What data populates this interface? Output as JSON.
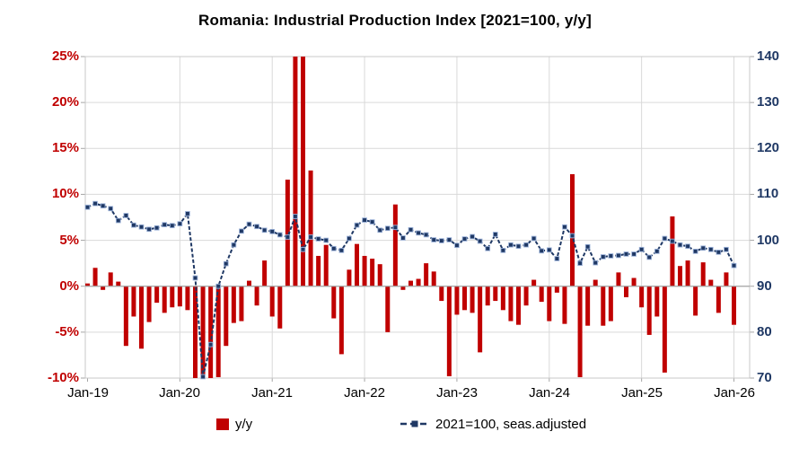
{
  "title": "Romania: Industrial Production Index [2021=100, y/y]",
  "colors": {
    "bar": "#c00000",
    "line": "#1f3864",
    "left_axis_labels": "#c00000",
    "right_axis_labels": "#1f3864",
    "x_axis_labels": "#000000",
    "gridline": "#d9d9d9",
    "plot_border": "#c9c9c9",
    "zero_line": "#a6a6a6",
    "marker_halo": "#9db3d9",
    "background": "#ffffff"
  },
  "axes": {
    "left_ticks": [
      "25%",
      "20%",
      "15%",
      "10%",
      "5%",
      "0%",
      "-5%",
      "-10%"
    ],
    "right_ticks": [
      "140",
      "130",
      "120",
      "110",
      "100",
      "90",
      "80",
      "70"
    ],
    "x_ticks": [
      "Jan-19",
      "Jan-20",
      "Jan-21",
      "Jan-22",
      "Jan-23",
      "Jan-24",
      "Jan-25",
      "Jan-26"
    ]
  },
  "legend": {
    "bar_label": "y/y",
    "line_label": "2021=100, seas.adjusted"
  },
  "chart_data": {
    "type": "combo",
    "subtype": [
      "bar",
      "line"
    ],
    "frequency": "monthly",
    "title": "Romania: Industrial Production Index [2021=100, y/y]",
    "grid": true,
    "legend_position": "bottom",
    "left_axis": {
      "min": -10,
      "max": 25,
      "step": 5,
      "unit": "%"
    },
    "right_axis": {
      "min": 70,
      "max": 140,
      "step": 10
    },
    "clipped_bars_at_axis_limit": [
      "Mar-20",
      "Apr-20",
      "May-20",
      "Apr-21",
      "May-21"
    ],
    "categories": [
      "Jan-19",
      "Feb-19",
      "Mar-19",
      "Apr-19",
      "May-19",
      "Jun-19",
      "Jul-19",
      "Aug-19",
      "Sep-19",
      "Oct-19",
      "Nov-19",
      "Dec-19",
      "Jan-20",
      "Feb-20",
      "Mar-20",
      "Apr-20",
      "May-20",
      "Jun-20",
      "Jul-20",
      "Aug-20",
      "Sep-20",
      "Oct-20",
      "Nov-20",
      "Dec-20",
      "Jan-21",
      "Feb-21",
      "Mar-21",
      "Apr-21",
      "May-21",
      "Jun-21",
      "Jul-21",
      "Aug-21",
      "Sep-21",
      "Oct-21",
      "Nov-21",
      "Dec-21",
      "Jan-22",
      "Feb-22",
      "Mar-22",
      "Apr-22",
      "May-22",
      "Jun-22",
      "Jul-22",
      "Aug-22",
      "Sep-22",
      "Oct-22",
      "Nov-22",
      "Dec-22",
      "Jan-23",
      "Feb-23",
      "Mar-23",
      "Apr-23",
      "May-23",
      "Jun-23",
      "Jul-23",
      "Aug-23",
      "Sep-23",
      "Oct-23",
      "Nov-23",
      "Dec-23",
      "Jan-24",
      "Feb-24",
      "Mar-24",
      "Apr-24",
      "May-24",
      "Jun-24",
      "Jul-24",
      "Aug-24",
      "Sep-24",
      "Oct-24",
      "Nov-24",
      "Dec-24",
      "Jan-25",
      "Feb-25",
      "Mar-25",
      "Apr-25",
      "May-25",
      "Jun-25",
      "Jul-25",
      "Aug-25",
      "Sep-25",
      "Oct-25",
      "Nov-25",
      "Dec-25",
      "Jan-26"
    ],
    "series": [
      {
        "name": "y/y",
        "type": "bar",
        "axis": "left",
        "unit": "%",
        "color": "#c00000",
        "values": [
          0.3,
          2.0,
          -0.4,
          1.5,
          0.5,
          -6.5,
          -3.3,
          -6.8,
          -3.9,
          -1.8,
          -2.9,
          -2.3,
          -2.2,
          -2.6,
          -10,
          -10,
          -10,
          -9.9,
          -6.5,
          -4.0,
          -3.8,
          0.6,
          -2.1,
          2.8,
          -3.3,
          -4.6,
          11.6,
          25,
          25,
          12.6,
          3.3,
          4.5,
          -3.5,
          -7.4,
          1.8,
          4.6,
          3.3,
          3.0,
          2.4,
          -5.0,
          8.9,
          -0.4,
          0.6,
          0.8,
          2.5,
          1.6,
          -1.6,
          -9.8,
          -3.1,
          -2.6,
          -2.9,
          -7.2,
          -2.1,
          -1.6,
          -2.6,
          -3.8,
          -4.2,
          -2.1,
          0.7,
          -1.7,
          -3.8,
          -0.7,
          -4.1,
          12.2,
          -9.9,
          -4.3,
          0.7,
          -4.3,
          -3.8,
          1.5,
          -1.2,
          0.9,
          -2.3,
          -5.3,
          -3.3,
          -9.4,
          7.6,
          2.2,
          2.8,
          -3.2,
          2.6,
          0.7,
          -2.9,
          1.5,
          -4.2
        ]
      },
      {
        "name": "2021=100, seas.adjusted",
        "type": "line",
        "axis": "right",
        "color": "#1f3864",
        "marker": "square",
        "dashed": true,
        "values": [
          107.2,
          108.0,
          107.5,
          106.9,
          104.3,
          105.4,
          103.3,
          102.9,
          102.4,
          102.7,
          103.4,
          103.2,
          103.6,
          105.8,
          91.8,
          70.3,
          77.3,
          90.0,
          94.9,
          99.0,
          102.0,
          103.5,
          103.0,
          102.2,
          101.9,
          101.2,
          100.7,
          105.2,
          98.0,
          100.7,
          100.3,
          100.0,
          98.2,
          97.8,
          100.4,
          103.3,
          104.4,
          104.0,
          102.2,
          102.6,
          102.8,
          100.5,
          102.3,
          101.6,
          101.2,
          100.1,
          99.9,
          100.1,
          98.9,
          100.3,
          100.8,
          99.8,
          98.2,
          101.3,
          97.8,
          99.0,
          98.7,
          99.0,
          100.4,
          97.7,
          97.9,
          96.0,
          102.9,
          101.0,
          95.0,
          98.6,
          95.1,
          96.4,
          96.6,
          96.7,
          97.0,
          97.0,
          98.0,
          96.3,
          97.6,
          100.4,
          99.8,
          99.0,
          98.7,
          97.6,
          98.3,
          98.0,
          97.4,
          98.0,
          94.5
        ]
      }
    ]
  }
}
